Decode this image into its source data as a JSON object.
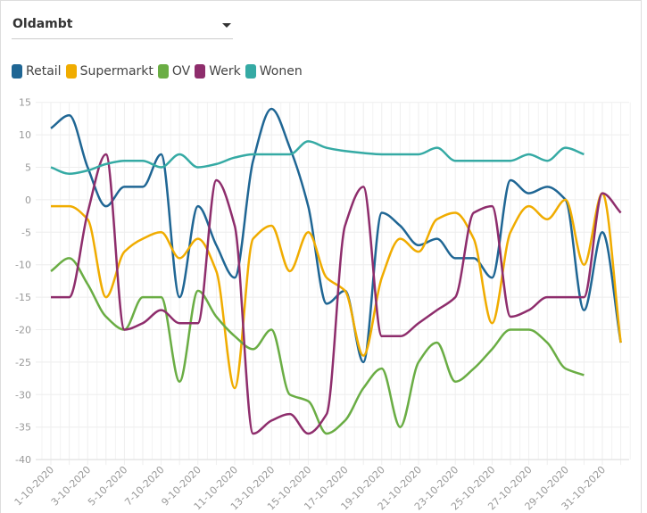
{
  "dropdown": {
    "selected": "Oldambt"
  },
  "chart_data": {
    "type": "line",
    "title": "",
    "xlabel": "",
    "ylabel": "",
    "ylim": [
      -40,
      15
    ],
    "yticks": [
      15,
      10,
      5,
      0,
      -5,
      -10,
      -15,
      -20,
      -25,
      -30,
      -35,
      -40
    ],
    "grid": true,
    "legend_position": "top-left",
    "x": [
      "1-10-2020",
      "2-10-2020",
      "3-10-2020",
      "4-10-2020",
      "5-10-2020",
      "6-10-2020",
      "7-10-2020",
      "8-10-2020",
      "9-10-2020",
      "10-10-2020",
      "11-10-2020",
      "12-10-2020",
      "13-10-2020",
      "14-10-2020",
      "15-10-2020",
      "16-10-2020",
      "17-10-2020",
      "18-10-2020",
      "19-10-2020",
      "20-10-2020",
      "21-10-2020",
      "22-10-2020",
      "23-10-2020",
      "24-10-2020",
      "25-10-2020",
      "26-10-2020",
      "27-10-2020",
      "28-10-2020",
      "29-10-2020",
      "30-10-2020",
      "31-10-2020",
      "1-11-2020"
    ],
    "xtick_labels": [
      "1-10-2020",
      "3-10-2020",
      "5-10-2020",
      "7-10-2020",
      "9-10-2020",
      "11-10-2020",
      "13-10-2020",
      "15-10-2020",
      "17-10-2020",
      "19-10-2020",
      "21-10-2020",
      "23-10-2020",
      "25-10-2020",
      "27-10-2020",
      "29-10-2020",
      "31-10-2020"
    ],
    "series": [
      {
        "name": "Retail",
        "color": "#1f6694",
        "values": [
          11,
          13,
          5,
          -1,
          2,
          2,
          7,
          -15,
          -1,
          -7,
          -12,
          6,
          14,
          8,
          -1,
          -16,
          -14,
          -25,
          -2,
          -4,
          -7,
          -6,
          -9,
          -9,
          -12,
          3,
          1,
          2,
          0,
          -17,
          -5,
          -22
        ]
      },
      {
        "name": "Supermarkt",
        "color": "#f0ac00",
        "values": [
          -1,
          -1,
          -3,
          -15,
          -8,
          -6,
          -5,
          -9,
          -6,
          -11,
          -29,
          -6,
          -4,
          -11,
          -5,
          -12,
          -14,
          -24,
          -12,
          -6,
          -8,
          -3,
          -2,
          -6,
          -19,
          -5,
          -1,
          -3,
          0,
          -10,
          1,
          -22
        ]
      },
      {
        "name": "OV",
        "color": "#6aad44",
        "values": [
          -11,
          -9,
          -13,
          -18,
          -20,
          -15,
          -15,
          -28,
          -14,
          -18,
          -21,
          -23,
          -20,
          -30,
          -31,
          -36,
          -34,
          -29,
          -26,
          -35,
          -25,
          -22,
          -28,
          -26,
          -23,
          -20,
          -20,
          -22,
          -26,
          -27,
          null,
          null
        ]
      },
      {
        "name": "Werk",
        "color": "#8e2d6c",
        "values": [
          -15,
          -15,
          -2,
          7,
          -20,
          -19,
          -17,
          -19,
          -19,
          3,
          -4,
          -36,
          -34,
          -33,
          -36,
          -33,
          -4,
          2,
          -21,
          -21,
          -19,
          -17,
          -15,
          -2,
          -1,
          -18,
          -17,
          -15,
          -15,
          -15,
          1,
          -2
        ]
      },
      {
        "name": "Wonen",
        "color": "#35aaa4",
        "values": [
          5,
          4,
          4.5,
          5.5,
          6,
          6,
          5,
          7,
          5,
          5.5,
          6.5,
          7,
          7,
          7,
          9,
          8,
          7.5,
          7.2,
          7,
          7,
          7,
          8,
          6,
          6,
          6,
          6,
          7,
          6,
          8,
          7,
          null,
          null
        ]
      }
    ]
  }
}
